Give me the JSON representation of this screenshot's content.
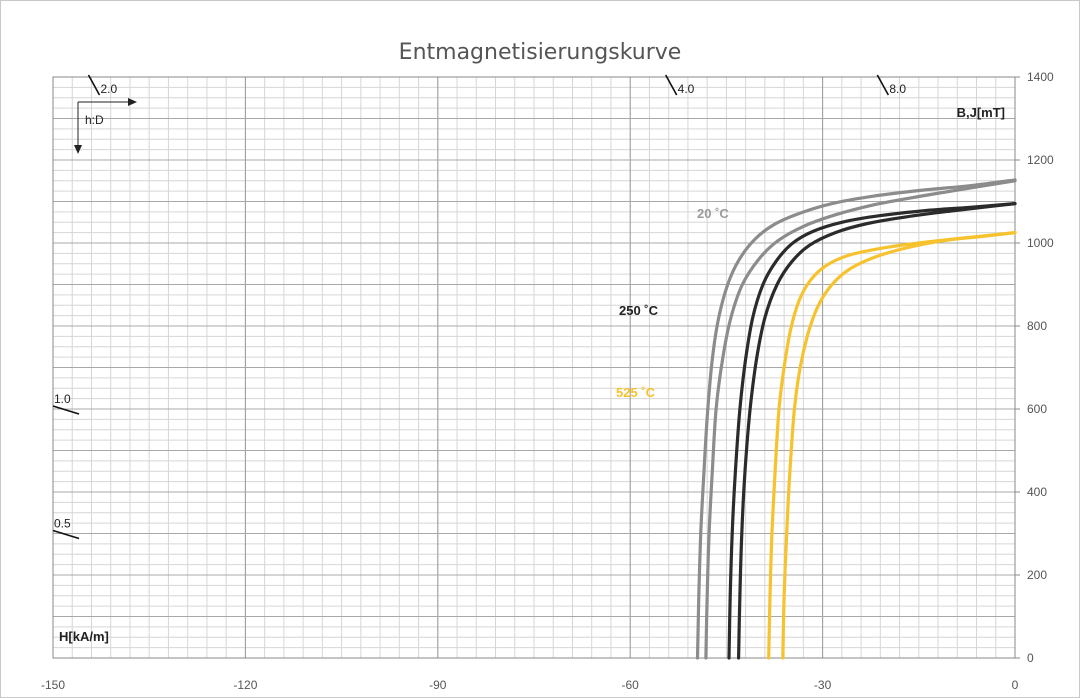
{
  "chart_data": {
    "type": "line",
    "title": "Entmagnetisierungskurve",
    "xlabel": "H[kA/m]",
    "ylabel": "B,J[mT]",
    "xlim": [
      -150,
      0
    ],
    "ylim": [
      0,
      1400
    ],
    "xticks": [
      "-150",
      "-120",
      "-90",
      "-60",
      "-30",
      "0"
    ],
    "yticks": [
      "0",
      "200",
      "400",
      "600",
      "800",
      "1000",
      "1200",
      "1400"
    ],
    "hd_label": "h:D",
    "load_lines": [
      {
        "label": "2.0",
        "edge": "top",
        "h_at_edge": -144
      },
      {
        "label": "4.0",
        "edge": "top",
        "h_at_edge": -54
      },
      {
        "label": "8.0",
        "edge": "top",
        "h_at_edge": -21
      },
      {
        "label": "1.0",
        "edge": "left",
        "b_at_edge": 600
      },
      {
        "label": "0.5",
        "edge": "left",
        "b_at_edge": 300
      }
    ],
    "series": [
      {
        "name": "20 °C",
        "label": "20 ˚C",
        "color": "#8c8c8d",
        "kind": "J",
        "points": [
          [
            -49.5,
            0
          ],
          [
            -49.3,
            150
          ],
          [
            -49.0,
            300
          ],
          [
            -48.5,
            450
          ],
          [
            -47.9,
            600
          ],
          [
            -47.2,
            720
          ],
          [
            -46.2,
            820
          ],
          [
            -44.8,
            900
          ],
          [
            -43.0,
            960
          ],
          [
            -40.5,
            1010
          ],
          [
            -37.5,
            1045
          ],
          [
            -33.5,
            1072
          ],
          [
            -28.5,
            1095
          ],
          [
            -22.0,
            1113
          ],
          [
            -14.0,
            1128
          ],
          [
            -7.0,
            1138
          ],
          [
            0,
            1152
          ]
        ]
      },
      {
        "name": "20 °C",
        "label": "",
        "color": "#8c8c8d",
        "kind": "B",
        "points": [
          [
            -48.2,
            0
          ],
          [
            -48.0,
            150
          ],
          [
            -47.7,
            300
          ],
          [
            -47.2,
            450
          ],
          [
            -46.6,
            600
          ],
          [
            -45.6,
            720
          ],
          [
            -44.3,
            820
          ],
          [
            -42.5,
            900
          ],
          [
            -40.0,
            960
          ],
          [
            -37.0,
            1005
          ],
          [
            -33.0,
            1040
          ],
          [
            -28.0,
            1068
          ],
          [
            -22.0,
            1092
          ],
          [
            -15.0,
            1112
          ],
          [
            -8.0,
            1130
          ],
          [
            0,
            1150
          ]
        ]
      },
      {
        "name": "250 °C",
        "label": "250 ˚C",
        "color": "#2b2b2b",
        "kind": "J",
        "points": [
          [
            -44.6,
            0
          ],
          [
            -44.4,
            150
          ],
          [
            -44.1,
            300
          ],
          [
            -43.6,
            450
          ],
          [
            -42.9,
            600
          ],
          [
            -42.0,
            720
          ],
          [
            -40.9,
            820
          ],
          [
            -39.3,
            900
          ],
          [
            -37.3,
            955
          ],
          [
            -34.8,
            998
          ],
          [
            -31.5,
            1028
          ],
          [
            -27.0,
            1050
          ],
          [
            -21.0,
            1066
          ],
          [
            -14.0,
            1078
          ],
          [
            -7.0,
            1086
          ],
          [
            0,
            1095
          ]
        ]
      },
      {
        "name": "250 °C",
        "label": "",
        "color": "#2b2b2b",
        "kind": "B",
        "points": [
          [
            -43.1,
            0
          ],
          [
            -42.9,
            150
          ],
          [
            -42.6,
            300
          ],
          [
            -42.1,
            450
          ],
          [
            -41.3,
            600
          ],
          [
            -40.3,
            720
          ],
          [
            -39.0,
            820
          ],
          [
            -37.1,
            900
          ],
          [
            -34.8,
            955
          ],
          [
            -32.0,
            995
          ],
          [
            -28.0,
            1025
          ],
          [
            -23.0,
            1047
          ],
          [
            -17.0,
            1063
          ],
          [
            -10.0,
            1077
          ],
          [
            -5.0,
            1086
          ],
          [
            0,
            1095
          ]
        ]
      },
      {
        "name": "525 °C",
        "label": "525 ˚C",
        "color": "#f6c22d",
        "kind": "J",
        "points": [
          [
            -38.4,
            0
          ],
          [
            -38.2,
            150
          ],
          [
            -37.9,
            300
          ],
          [
            -37.4,
            450
          ],
          [
            -36.8,
            600
          ],
          [
            -36.0,
            700
          ],
          [
            -35.0,
            790
          ],
          [
            -33.7,
            860
          ],
          [
            -31.9,
            910
          ],
          [
            -29.5,
            945
          ],
          [
            -26.0,
            970
          ],
          [
            -21.0,
            987
          ],
          [
            -15.0,
            1000
          ],
          [
            -8.0,
            1012
          ],
          [
            0,
            1025
          ]
        ]
      },
      {
        "name": "525 °C",
        "label": "",
        "color": "#f6c22d",
        "kind": "B",
        "points": [
          [
            -36.2,
            0
          ],
          [
            -36.0,
            150
          ],
          [
            -35.6,
            300
          ],
          [
            -35.1,
            450
          ],
          [
            -34.4,
            600
          ],
          [
            -33.5,
            700
          ],
          [
            -32.3,
            780
          ],
          [
            -30.8,
            845
          ],
          [
            -28.8,
            895
          ],
          [
            -26.0,
            935
          ],
          [
            -22.0,
            965
          ],
          [
            -17.0,
            988
          ],
          [
            -11.0,
            1006
          ],
          [
            -5.0,
            1016
          ],
          [
            0,
            1025
          ]
        ]
      }
    ]
  }
}
